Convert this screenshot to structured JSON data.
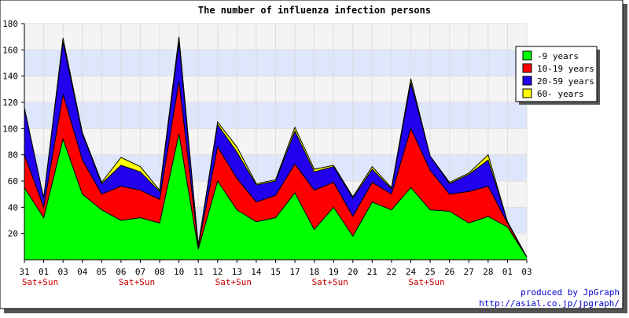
{
  "chart_data": {
    "type": "area",
    "stacked": true,
    "title": "The number of influenza infection persons",
    "xlabel": "",
    "ylabel": "",
    "ylim": [
      0,
      180
    ],
    "yticks": [
      20,
      40,
      60,
      80,
      100,
      120,
      140,
      160,
      180
    ],
    "grid": true,
    "legend_position": "top-right",
    "categories": [
      "31",
      "01",
      "03",
      "04",
      "05",
      "06",
      "07",
      "08",
      "10",
      "11",
      "12",
      "13",
      "14",
      "15",
      "17",
      "18",
      "19",
      "20",
      "21",
      "22",
      "24",
      "25",
      "26",
      "27",
      "28",
      "01",
      "03"
    ],
    "weekend_markers": [
      {
        "category_index": 0,
        "label": "Sat+Sun"
      },
      {
        "category_index": 5,
        "label": "Sat+Sun"
      },
      {
        "category_index": 10,
        "label": "Sat+Sun"
      },
      {
        "category_index": 15,
        "label": "Sat+Sun"
      },
      {
        "category_index": 20,
        "label": "Sat+Sun"
      }
    ],
    "series": [
      {
        "name": "-9 years",
        "color": "#00ff00",
        "values": [
          55,
          32,
          92,
          50,
          38,
          30,
          32,
          28,
          96,
          8,
          60,
          38,
          29,
          32,
          51,
          23,
          40,
          18,
          44,
          38,
          55,
          38,
          37,
          28,
          33,
          25,
          2
        ]
      },
      {
        "name": "10-19 years",
        "color": "#ff0000",
        "values": [
          25,
          8,
          34,
          26,
          12,
          26,
          21,
          18,
          40,
          2,
          26,
          24,
          15,
          17,
          22,
          30,
          19,
          15,
          15,
          12,
          45,
          30,
          13,
          24,
          23,
          3,
          0
        ]
      },
      {
        "name": "20-59 years",
        "color": "#2200ee",
        "values": [
          35,
          7,
          40,
          20,
          8,
          16,
          14,
          6,
          30,
          1,
          17,
          20,
          13,
          11,
          25,
          14,
          12,
          14,
          10,
          4,
          35,
          11,
          8,
          13,
          20,
          1,
          0
        ]
      },
      {
        "name": "60- years",
        "color": "#ffff00",
        "values": [
          1,
          0,
          3,
          1,
          1,
          6,
          4,
          1,
          4,
          0,
          2,
          4,
          1,
          1,
          3,
          2,
          1,
          1,
          2,
          1,
          3,
          0,
          1,
          1,
          4,
          0,
          0
        ]
      }
    ]
  },
  "credits": {
    "line1": "produced by JpGraph",
    "line2": "http://asial.co.jp/jpgraph/"
  },
  "colors": {
    "band": "#dde6fb",
    "plot_bg": "#f4f4f4",
    "weekend": "#cc0000",
    "credit": "#0000cc"
  }
}
